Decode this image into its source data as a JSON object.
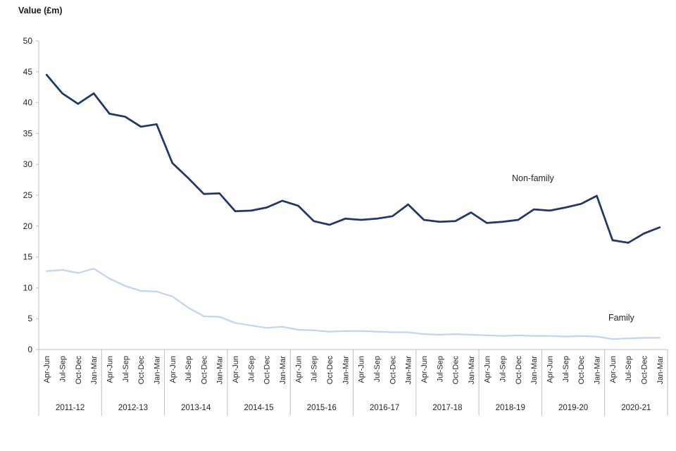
{
  "chart_data": {
    "type": "line",
    "title": "Value (£m)",
    "xlabel": "",
    "ylabel": "Value (£m)",
    "ylim": [
      0,
      50
    ],
    "ytick_step": 5,
    "grid": false,
    "legend_position": "inline-labels",
    "axis_color": "#BFBFBF",
    "text_color": "#262626",
    "quarters": [
      "Apr-Jun",
      "Jul-Sep",
      "Oct-Dec",
      "Jan-Mar"
    ],
    "years": [
      "2011-12",
      "2012-13",
      "2013-14",
      "2014-15",
      "2015-16",
      "2016-17",
      "2017-18",
      "2018-19",
      "2019-20",
      "2020-21"
    ],
    "series": [
      {
        "name": "Non-family",
        "color": "#1F3864",
        "stroke_width": 2.75,
        "values": [
          44.5,
          41.5,
          39.8,
          41.5,
          38.2,
          37.7,
          36.1,
          36.5,
          30.2,
          27.8,
          25.2,
          25.3,
          22.4,
          22.5,
          23.0,
          24.1,
          23.3,
          20.8,
          20.2,
          21.2,
          21.0,
          21.2,
          21.6,
          23.5,
          21.0,
          20.7,
          20.8,
          22.2,
          20.5,
          20.7,
          21.0,
          22.7,
          22.5,
          23.0,
          23.6,
          24.9,
          17.7,
          17.3,
          18.8,
          19.8
        ]
      },
      {
        "name": "Family",
        "color": "#C3D5EA",
        "stroke_width": 2.25,
        "values": [
          12.7,
          12.9,
          12.4,
          13.1,
          11.5,
          10.3,
          9.5,
          9.4,
          8.6,
          6.8,
          5.4,
          5.3,
          4.3,
          3.9,
          3.5,
          3.7,
          3.2,
          3.1,
          2.9,
          3.0,
          3.0,
          2.9,
          2.8,
          2.8,
          2.5,
          2.4,
          2.5,
          2.4,
          2.3,
          2.2,
          2.3,
          2.2,
          2.2,
          2.1,
          2.2,
          2.1,
          1.7,
          1.8,
          1.9,
          1.9
        ]
      }
    ]
  }
}
